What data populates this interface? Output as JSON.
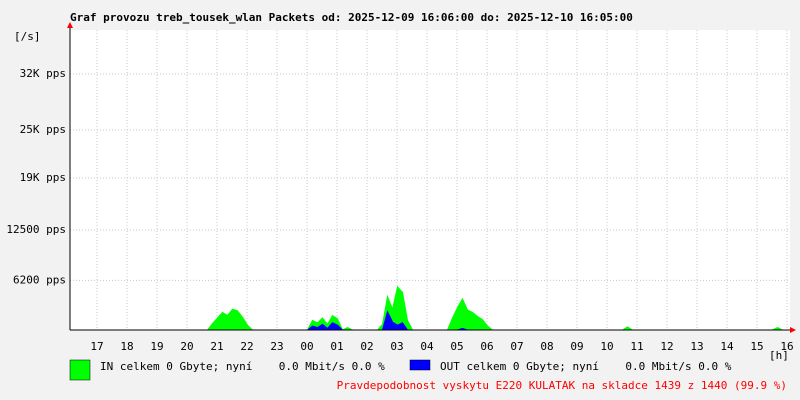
{
  "chart_data": {
    "type": "area",
    "title": "Graf provozu treb_tousek_wlan Packets od: 2025-12-09 16:06:00 do: 2025-12-10 16:05:00",
    "y_unit": "[/s]",
    "x_unit": "[h]",
    "xticks": [
      "17",
      "18",
      "19",
      "20",
      "21",
      "22",
      "23",
      "00",
      "01",
      "02",
      "03",
      "04",
      "05",
      "06",
      "07",
      "08",
      "09",
      "10",
      "11",
      "12",
      "13",
      "14",
      "15",
      "16"
    ],
    "ylim": [
      0,
      37500
    ],
    "yticks": [
      {
        "value": 6200,
        "label": "6200 pps"
      },
      {
        "value": 12500,
        "label": "12500 pps"
      },
      {
        "value": 19000,
        "label": "19K pps"
      },
      {
        "value": 25000,
        "label": "25K pps"
      },
      {
        "value": 32000,
        "label": "32K pps"
      }
    ],
    "grid": true,
    "series": [
      {
        "name": "IN celkem 0 Gbyte; nyní    0.0 Mbit/s 0.0 %",
        "color": "#00ff00",
        "values": [
          0,
          0,
          0,
          0,
          0,
          0,
          0,
          0,
          0,
          0,
          0,
          0,
          0,
          0,
          0,
          0,
          0,
          0,
          0,
          0,
          0,
          0,
          0,
          0,
          0,
          0,
          0,
          0,
          800,
          1500,
          2200,
          1800,
          2600,
          2400,
          1600,
          600,
          0,
          0,
          0,
          0,
          0,
          0,
          0,
          0,
          0,
          0,
          0,
          0,
          1200,
          900,
          1500,
          700,
          1800,
          1400,
          0,
          300,
          0,
          0,
          0,
          0,
          0,
          0,
          700,
          4200,
          2600,
          5400,
          4700,
          1200,
          0,
          0,
          0,
          0,
          0,
          0,
          0,
          0,
          1500,
          2800,
          3900,
          2500,
          2200,
          1700,
          1300,
          500,
          0,
          0,
          0,
          0,
          0,
          0,
          0,
          0,
          0,
          0,
          0,
          0,
          0,
          0,
          0,
          0,
          0,
          0,
          0,
          0,
          0,
          0,
          0,
          0,
          0,
          0,
          0,
          400,
          0,
          0,
          0,
          0,
          0,
          0,
          0,
          0,
          0,
          0,
          0,
          0,
          0,
          0,
          0,
          0,
          0,
          0,
          0,
          0,
          0,
          0,
          0,
          0,
          0,
          0,
          0,
          0,
          0,
          300,
          0,
          0
        ]
      },
      {
        "name": "OUT celkem 0 Gbyte; nyní    0.0 Mbit/s 0.0 %",
        "color": "#0000ff",
        "values": [
          0,
          0,
          0,
          0,
          0,
          0,
          0,
          0,
          0,
          0,
          0,
          0,
          0,
          0,
          0,
          0,
          0,
          0,
          0,
          0,
          0,
          0,
          0,
          0,
          0,
          0,
          0,
          0,
          0,
          0,
          0,
          0,
          0,
          0,
          0,
          0,
          0,
          0,
          0,
          0,
          0,
          0,
          0,
          0,
          0,
          0,
          0,
          0,
          500,
          300,
          700,
          200,
          900,
          600,
          0,
          0,
          0,
          0,
          0,
          0,
          0,
          0,
          0,
          2300,
          1000,
          600,
          900,
          0,
          0,
          0,
          0,
          0,
          0,
          0,
          0,
          0,
          0,
          0,
          200,
          0,
          0,
          0,
          0,
          0,
          0,
          0,
          0,
          0,
          0,
          0,
          0,
          0,
          0,
          0,
          0,
          0,
          0,
          0,
          0,
          0,
          0,
          0,
          0,
          0,
          0,
          0,
          0,
          0,
          0,
          0,
          0,
          0,
          0,
          0,
          0,
          0,
          0,
          0,
          0,
          0,
          0,
          0,
          0,
          0,
          0,
          0,
          0,
          0,
          0,
          0,
          0,
          0,
          0,
          0,
          0,
          0,
          0,
          0,
          0,
          0,
          0,
          0,
          0,
          0
        ]
      }
    ],
    "note": "Pravdepodobnost vyskytu E220 KULATAK na skladce 1439 z 1440 (99.9 %)"
  }
}
